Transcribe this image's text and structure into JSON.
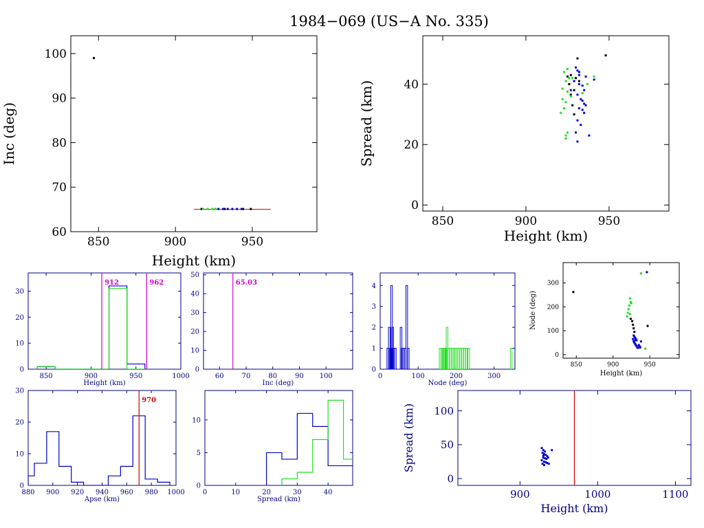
{
  "title": "1984−069 (US−A No. 335)",
  "colors": {
    "black": "#000000",
    "blue": "#0000cc",
    "green": "#22dd22",
    "magenta": "#cc00cc",
    "red": "#cc0000",
    "navy": "#000080"
  },
  "chart_data": [
    {
      "id": "inc_vs_height",
      "type": "scatter",
      "xlabel": "Height (km)",
      "ylabel": "Inc (deg)",
      "xlim": [
        832,
        992
      ],
      "ylim": [
        60,
        104
      ],
      "xticks": [
        850,
        900,
        950
      ],
      "yticks": [
        60,
        70,
        80,
        90,
        100
      ],
      "axis_color": "black",
      "series": [
        {
          "color": "black",
          "points": [
            [
              847,
              99
            ],
            [
              917,
              65.1
            ],
            [
              926,
              65.1
            ],
            [
              932,
              65.1
            ],
            [
              944,
              65.1
            ],
            [
              949,
              65.1
            ]
          ]
        },
        {
          "color": "green",
          "points": [
            [
              918,
              65.1
            ],
            [
              921,
              65.1
            ],
            [
              924,
              65.1
            ],
            [
              926,
              65.1
            ]
          ]
        },
        {
          "color": "blue",
          "points": [
            [
              928,
              65.1
            ],
            [
              931,
              65.1
            ],
            [
              934,
              65.1
            ],
            [
              937,
              65.1
            ],
            [
              940,
              65.1
            ],
            [
              943,
              65.1
            ]
          ]
        }
      ],
      "hlines": [
        {
          "y": 65.03,
          "x0": 912,
          "x1": 962,
          "color": "red"
        }
      ]
    },
    {
      "id": "spread_vs_height",
      "type": "scatter",
      "xlabel": "Height (km)",
      "ylabel": "Spread (km)",
      "xlim": [
        838,
        986
      ],
      "ylim": [
        -2,
        56
      ],
      "xticks": [
        850,
        900,
        950
      ],
      "yticks": [
        0,
        20,
        40
      ],
      "axis_color": "black",
      "series": [
        {
          "color": "black",
          "points": [
            [
              931,
              48.5
            ],
            [
              948,
              49.5
            ],
            [
              927,
              43
            ],
            [
              930,
              42
            ],
            [
              926,
              40
            ],
            [
              929,
              38
            ],
            [
              927,
              36.5
            ],
            [
              928,
              33
            ],
            [
              929,
              30
            ],
            [
              925,
              42.5
            ],
            [
              932,
              41
            ]
          ]
        },
        {
          "color": "green",
          "points": [
            [
              925,
              45
            ],
            [
              923,
              44
            ],
            [
              926,
              42
            ],
            [
              924,
              41
            ],
            [
              922,
              38.5
            ],
            [
              925,
              37.5
            ],
            [
              927,
              36
            ],
            [
              922,
              35
            ],
            [
              924,
              34
            ],
            [
              923,
              32
            ],
            [
              921,
              30.5
            ],
            [
              925,
              24
            ],
            [
              924,
              23
            ],
            [
              924,
              22
            ],
            [
              941,
              42.5
            ],
            [
              937,
              40
            ],
            [
              934,
              37
            ],
            [
              928,
              42
            ]
          ]
        },
        {
          "color": "blue",
          "points": [
            [
              930,
              45.5
            ],
            [
              931,
              44.5
            ],
            [
              932,
              43
            ],
            [
              936,
              42.5
            ],
            [
              941,
              41.5
            ],
            [
              929,
              41
            ],
            [
              932,
              40
            ],
            [
              934,
              39.5
            ],
            [
              935,
              38
            ],
            [
              931,
              36.5
            ],
            [
              933,
              35
            ],
            [
              934,
              34.5
            ],
            [
              935,
              33.5
            ],
            [
              936,
              33
            ],
            [
              932,
              32
            ],
            [
              934,
              31.5
            ],
            [
              935,
              30.5
            ],
            [
              931,
              28
            ],
            [
              933,
              26.5
            ],
            [
              930,
              24
            ],
            [
              938,
              23
            ],
            [
              931,
              21
            ],
            [
              927,
              38
            ],
            [
              932,
              44
            ]
          ]
        }
      ]
    },
    {
      "id": "height_histogram",
      "type": "bar",
      "xlabel": "Height (km)",
      "xlim": [
        830,
        1000
      ],
      "ylim": [
        0,
        37
      ],
      "xticks": [
        850,
        900,
        950,
        1000
      ],
      "yticks": [
        0,
        10,
        20,
        30
      ],
      "axis_color": "navy",
      "series": [
        {
          "color": "blue",
          "edges": [
            840,
            860,
            880,
            900,
            920,
            940,
            960
          ],
          "values": [
            1,
            0,
            0,
            0,
            32,
            2
          ]
        },
        {
          "color": "green",
          "edges": [
            840,
            860,
            880,
            900,
            920,
            940,
            960
          ],
          "values": [
            1,
            0,
            0,
            0,
            31,
            0
          ]
        }
      ],
      "vlines": [
        {
          "x": 912,
          "label": "912",
          "color": "magenta"
        },
        {
          "x": 962,
          "label": "962",
          "color": "magenta"
        }
      ]
    },
    {
      "id": "inc_histogram",
      "type": "bar",
      "xlabel": "Inc (deg)",
      "xlim": [
        54,
        110
      ],
      "ylim": [
        0,
        51
      ],
      "xticks": [
        60,
        70,
        80,
        90,
        100
      ],
      "yticks": [
        0,
        10,
        20,
        30,
        40,
        50
      ],
      "axis_color": "navy",
      "series": [],
      "vlines": [
        {
          "x": 65.03,
          "label": "65.03",
          "color": "magenta"
        }
      ]
    },
    {
      "id": "node_histogram",
      "type": "bar",
      "xlabel": "Node (deg)",
      "xlim": [
        0,
        355
      ],
      "ylim": [
        0,
        4.6
      ],
      "xticks": [
        0,
        100,
        200,
        300
      ],
      "yticks": [
        0,
        1,
        2,
        3,
        4
      ],
      "axis_color": "navy",
      "series": [
        {
          "color": "blue",
          "bars": [
            [
              20,
              1
            ],
            [
              24,
              2
            ],
            [
              27,
              1
            ],
            [
              30,
              4
            ],
            [
              33,
              2
            ],
            [
              36,
              1
            ],
            [
              40,
              1
            ],
            [
              55,
              2
            ],
            [
              58,
              1
            ],
            [
              62,
              1
            ],
            [
              66,
              1
            ],
            [
              70,
              4
            ],
            [
              74,
              1
            ]
          ]
        },
        {
          "color": "green",
          "bars": [
            [
              158,
              1
            ],
            [
              163,
              1
            ],
            [
              166,
              1
            ],
            [
              170,
              1
            ],
            [
              173,
              1
            ],
            [
              176,
              2
            ],
            [
              180,
              1
            ],
            [
              185,
              1
            ],
            [
              190,
              1
            ],
            [
              194,
              1
            ],
            [
              198,
              1
            ],
            [
              202,
              1
            ],
            [
              207,
              1
            ],
            [
              212,
              1
            ],
            [
              217,
              1
            ],
            [
              222,
              1
            ],
            [
              227,
              1
            ],
            [
              233,
              1
            ],
            [
              345,
              1
            ]
          ]
        }
      ]
    },
    {
      "id": "node_vs_height",
      "type": "scatter",
      "xlabel": "Height (km)",
      "ylabel": "Node (deg)",
      "xlim": [
        832,
        990
      ],
      "ylim": [
        -15,
        385
      ],
      "xticks": [
        850,
        900,
        950
      ],
      "yticks": [
        0,
        100,
        200,
        300
      ],
      "axis_color": "black",
      "series": [
        {
          "color": "black",
          "points": [
            [
              846,
              262
            ],
            [
              947,
              120
            ],
            [
              924,
              150
            ],
            [
              926,
              140
            ],
            [
              927,
              125
            ],
            [
              928,
              110
            ],
            [
              929,
              95
            ]
          ]
        },
        {
          "color": "green",
          "points": [
            [
              938,
              340
            ],
            [
              923,
              235
            ],
            [
              924,
              220
            ],
            [
              922,
              205
            ],
            [
              921,
              190
            ],
            [
              920,
              175
            ],
            [
              919,
              160
            ],
            [
              923,
              170
            ],
            [
              925,
              215
            ],
            [
              944,
              25
            ]
          ]
        },
        {
          "color": "blue",
          "points": [
            [
              946,
              345
            ],
            [
              928,
              80
            ],
            [
              929,
              75
            ],
            [
              930,
              70
            ],
            [
              931,
              65
            ],
            [
              932,
              60
            ],
            [
              928,
              55
            ],
            [
              929,
              50
            ],
            [
              930,
              45
            ],
            [
              931,
              40
            ],
            [
              932,
              35
            ],
            [
              933,
              30
            ],
            [
              934,
              28
            ],
            [
              935,
              40
            ],
            [
              936,
              35
            ],
            [
              937,
              30
            ],
            [
              930,
              60
            ],
            [
              938,
              55
            ],
            [
              927,
              65
            ]
          ]
        }
      ]
    },
    {
      "id": "apse_histogram",
      "type": "bar",
      "xlabel": "Apse (km)",
      "xlim": [
        880,
        1000
      ],
      "ylim": [
        0,
        30
      ],
      "xticks": [
        880,
        900,
        920,
        940,
        960,
        980,
        1000
      ],
      "yticks": [
        0,
        10,
        20,
        30
      ],
      "axis_color": "navy",
      "series": [
        {
          "color": "blue",
          "edges": [
            880,
            885,
            895,
            905,
            915,
            925,
            935,
            945,
            955,
            965,
            975,
            985,
            995
          ],
          "values": [
            3,
            7,
            17,
            6,
            1,
            0,
            0,
            3,
            6,
            22,
            2,
            1
          ]
        }
      ],
      "vlines": [
        {
          "x": 970,
          "label": "970",
          "color": "red"
        }
      ]
    },
    {
      "id": "spread_histogram",
      "type": "bar",
      "xlabel": "Spread (km)",
      "xlim": [
        0,
        48
      ],
      "ylim": [
        0,
        14.5
      ],
      "xticks": [
        0,
        10,
        20,
        30,
        40
      ],
      "yticks": [
        0,
        5,
        10
      ],
      "axis_color": "navy",
      "series": [
        {
          "color": "blue",
          "edges": [
            20,
            25,
            30,
            35,
            40,
            45,
            50
          ],
          "values": [
            5,
            4,
            11,
            9,
            3,
            3
          ]
        },
        {
          "color": "green",
          "edges": [
            25,
            30,
            35,
            40,
            45,
            50
          ],
          "values": [
            1,
            2,
            7,
            13,
            4
          ]
        }
      ]
    },
    {
      "id": "spread_vs_height_wide",
      "type": "scatter",
      "xlabel": "Height (km)",
      "ylabel": "Spread (km)",
      "xlim": [
        820,
        1120
      ],
      "ylim": [
        -10,
        130
      ],
      "xticks": [
        900,
        1000,
        1100
      ],
      "yticks": [
        0,
        50,
        100
      ],
      "axis_color": "navy",
      "series": [
        {
          "color": "blue",
          "points": [
            [
              928,
              45
            ],
            [
              930,
              42
            ],
            [
              932,
              40
            ],
            [
              929,
              38
            ],
            [
              931,
              36
            ],
            [
              933,
              35
            ],
            [
              935,
              33
            ],
            [
              930,
              31
            ],
            [
              932,
              30
            ],
            [
              934,
              29
            ],
            [
              928,
              27
            ],
            [
              931,
              25
            ],
            [
              933,
              24
            ],
            [
              935,
              23
            ],
            [
              929,
              22
            ],
            [
              937,
              22
            ],
            [
              941,
              42
            ],
            [
              931,
              20
            ],
            [
              936,
              31
            ],
            [
              930,
              34
            ]
          ]
        }
      ],
      "vlines": [
        {
          "x": 970,
          "color": "red"
        }
      ]
    }
  ]
}
